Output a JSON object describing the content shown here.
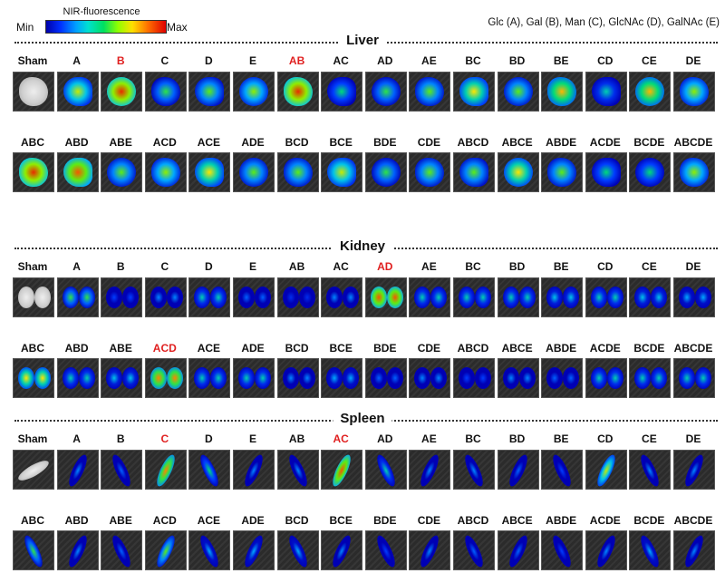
{
  "colorbar": {
    "title": "NIR-fluorescence",
    "min": "Min",
    "max": "Max"
  },
  "legend": "Glc (A), Gal (B), Man (C), GlcNAc (D), GalNAc (E)",
  "sections": [
    {
      "title": "Liver",
      "organ": "liver",
      "rows": [
        {
          "labels": [
            "Sham",
            "A",
            "B",
            "C",
            "D",
            "E",
            "AB",
            "AC",
            "AD",
            "AE",
            "BC",
            "BD",
            "BE",
            "CD",
            "CE",
            "DE"
          ],
          "highlight": [
            2,
            6
          ],
          "intensity": [
            0,
            0.7,
            0.95,
            0.55,
            0.6,
            0.65,
            0.95,
            0.5,
            0.55,
            0.6,
            0.75,
            0.6,
            0.8,
            0.45,
            0.8,
            0.65
          ]
        },
        {
          "labels": [
            "ABC",
            "ABD",
            "ABE",
            "ACD",
            "ACE",
            "ADE",
            "BCD",
            "BCE",
            "BDE",
            "CDE",
            "ABCD",
            "ABCE",
            "ABDE",
            "ACDE",
            "BCDE",
            "ABCDE"
          ],
          "highlight": [],
          "intensity": [
            0.95,
            0.9,
            0.6,
            0.65,
            0.75,
            0.6,
            0.6,
            0.7,
            0.55,
            0.6,
            0.6,
            0.75,
            0.6,
            0.5,
            0.5,
            0.65
          ]
        }
      ]
    },
    {
      "title": "Kidney",
      "organ": "kidney",
      "rows": [
        {
          "labels": [
            "Sham",
            "A",
            "B",
            "C",
            "D",
            "E",
            "AB",
            "AC",
            "AD",
            "AE",
            "BC",
            "BD",
            "BE",
            "CD",
            "CE",
            "DE"
          ],
          "highlight": [
            8
          ],
          "intensity": [
            0,
            0.55,
            0.2,
            0.3,
            0.45,
            0.25,
            0.15,
            0.3,
            0.9,
            0.45,
            0.45,
            0.45,
            0.4,
            0.45,
            0.4,
            0.35
          ]
        },
        {
          "labels": [
            "ABC",
            "ABD",
            "ABE",
            "ACD",
            "ACE",
            "ADE",
            "BCD",
            "BCE",
            "BDE",
            "CDE",
            "ABCD",
            "ABCE",
            "ABDE",
            "ACDE",
            "BCDE",
            "ABCDE"
          ],
          "highlight": [
            3
          ],
          "intensity": [
            0.75,
            0.45,
            0.4,
            0.85,
            0.45,
            0.45,
            0.3,
            0.35,
            0.25,
            0.3,
            0.2,
            0.3,
            0.25,
            0.45,
            0.45,
            0.45
          ]
        }
      ]
    },
    {
      "title": "Spleen",
      "organ": "spleen",
      "rows": [
        {
          "labels": [
            "Sham",
            "A",
            "B",
            "C",
            "D",
            "E",
            "AB",
            "AC",
            "AD",
            "AE",
            "BC",
            "BD",
            "BE",
            "CD",
            "CE",
            "DE"
          ],
          "highlight": [
            3,
            7
          ],
          "intensity": [
            0,
            0.3,
            0.25,
            0.85,
            0.5,
            0.3,
            0.3,
            0.9,
            0.45,
            0.3,
            0.3,
            0.25,
            0.2,
            0.7,
            0.3,
            0.3
          ]
        },
        {
          "labels": [
            "ABC",
            "ABD",
            "ABE",
            "ACD",
            "ACE",
            "ADE",
            "BCD",
            "BCE",
            "BDE",
            "CDE",
            "ABCD",
            "ABCE",
            "ABDE",
            "ACDE",
            "BCDE",
            "ABCDE"
          ],
          "highlight": [],
          "intensity": [
            0.55,
            0.3,
            0.25,
            0.6,
            0.35,
            0.35,
            0.35,
            0.3,
            0.2,
            0.3,
            0.25,
            0.25,
            0.2,
            0.3,
            0.35,
            0.3
          ]
        }
      ]
    }
  ]
}
